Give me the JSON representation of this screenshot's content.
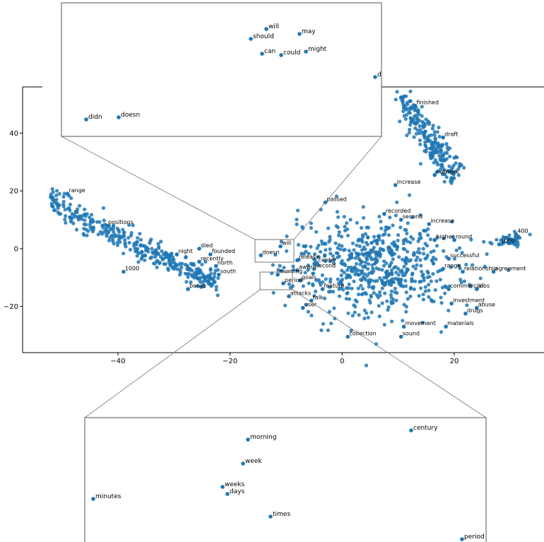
{
  "chart_data": {
    "type": "scatter",
    "xlim": [
      -57,
      36
    ],
    "ylim": [
      -36,
      56
    ],
    "xticks": [
      -40,
      -20,
      0,
      20
    ],
    "yticks": [
      -20,
      0,
      20,
      40
    ],
    "grid": false,
    "marker_color": "#1f77b4",
    "points": [
      {
        "label": "passed",
        "x": -3.0,
        "y": 16.0
      },
      {
        "label": "recorded",
        "x": 7.5,
        "y": 12.0
      },
      {
        "label": "increase",
        "x": 15.5,
        "y": 8.5
      },
      {
        "label": "second",
        "x": 10.5,
        "y": 10.0
      },
      {
        "label": "higher",
        "x": 16.5,
        "y": 3.0
      },
      {
        "label": "round",
        "x": 20.0,
        "y": 3.0
      },
      {
        "label": "range",
        "x": 18.0,
        "y": -7.0
      },
      {
        "label": "relationship",
        "x": 21.5,
        "y": -8.0
      },
      {
        "label": "agreement",
        "x": 27.0,
        "y": -8.0
      },
      {
        "label": "successful",
        "x": 19.0,
        "y": -3.5
      },
      {
        "label": "jobs",
        "x": 24.0,
        "y": -14.0
      },
      {
        "label": "commercial",
        "x": 19.0,
        "y": -14.0
      },
      {
        "label": "abuse",
        "x": 24.0,
        "y": -20.5
      },
      {
        "label": "drugs",
        "x": 22.0,
        "y": -22.5
      },
      {
        "label": "investment",
        "x": 19.5,
        "y": -19.0
      },
      {
        "label": "movement",
        "x": 11.0,
        "y": -27.0
      },
      {
        "label": "materials",
        "x": 18.5,
        "y": -27.0
      },
      {
        "label": "sound",
        "x": 10.5,
        "y": -30.5
      },
      {
        "label": "collection",
        "x": 1.0,
        "y": -30.5
      },
      {
        "label": "user",
        "x": -7.0,
        "y": -20.5
      },
      {
        "label": "attacks",
        "x": -9.5,
        "y": -16.5
      },
      {
        "label": "talk",
        "x": -5.5,
        "y": -18.0
      },
      {
        "label": "goals",
        "x": -7.5,
        "y": -11.0
      },
      {
        "label": "feature",
        "x": -3.5,
        "y": -14.0
      },
      {
        "label": "award",
        "x": -8.0,
        "y": -7.5
      },
      {
        "label": "release",
        "x": -8.0,
        "y": -4.0
      },
      {
        "label": "second",
        "x": -5.0,
        "y": -7.0
      },
      {
        "label": "center",
        "x": -4.5,
        "y": -5.0
      },
      {
        "label": "south",
        "x": -22.0,
        "y": -9.0
      },
      {
        "label": "north",
        "x": -22.5,
        "y": -6.0
      },
      {
        "label": "recently",
        "x": -25.5,
        "y": -4.5
      },
      {
        "label": "died",
        "x": -25.5,
        "y": 0.0
      },
      {
        "label": "founded",
        "x": -23.5,
        "y": -2.0
      },
      {
        "label": "night",
        "x": -29.5,
        "y": -2.0
      },
      {
        "label": "banks",
        "x": -27.5,
        "y": -14.0
      },
      {
        "label": "1000",
        "x": -39.0,
        "y": -8.0
      },
      {
        "label": "positions",
        "x": -42.0,
        "y": 8.0
      },
      {
        "label": "range",
        "x": -49.0,
        "y": 19.0
      },
      {
        "label": "400",
        "x": 31.0,
        "y": 5.0
      },
      {
        "label": "1000",
        "x": 28.0,
        "y": 1.5
      },
      {
        "label": "network",
        "x": 16.5,
        "y": 25.5
      },
      {
        "label": "draft",
        "x": 18.0,
        "y": 38.5
      },
      {
        "label": "finished",
        "x": 13.0,
        "y": 49.5
      },
      {
        "label": "increase",
        "x": 9.5,
        "y": 22.0
      },
      {
        "label": "will",
        "x": -11.0,
        "y": 0.8
      },
      {
        "label": "doesn",
        "x": -14.5,
        "y": -2.3
      },
      {
        "label": "morning",
        "x": -11.5,
        "y": -9.0
      },
      {
        "label": "period",
        "x": -10.5,
        "y": -12.0
      }
    ]
  },
  "inset_top": {
    "words": [
      "will",
      "should",
      "may",
      "can",
      "could",
      "might",
      "d",
      "didn",
      "doesn"
    ]
  },
  "inset_bottom": {
    "words": [
      "century",
      "morning",
      "week",
      "weeks",
      "days",
      "minutes",
      "times",
      "period"
    ]
  }
}
